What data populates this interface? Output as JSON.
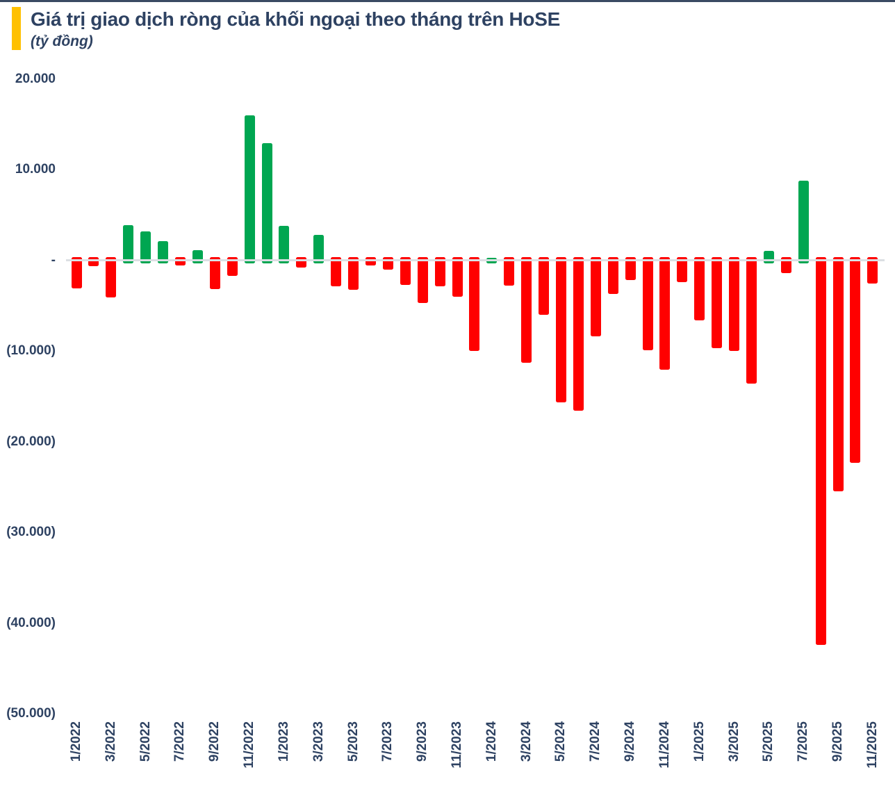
{
  "header": {
    "title": "Giá trị giao dịch ròng của khối ngoại theo tháng trên HoSE",
    "subtitle": "(tỷ đồng)"
  },
  "colors": {
    "accent": "#FFC000",
    "positive": "#00A651",
    "negative": "#FF0000",
    "text": "#2E4262",
    "zero_line": "#DCDFE3",
    "top_edge": "#3A4A63"
  },
  "chart_data": {
    "type": "bar",
    "title": "Giá trị giao dịch ròng của khối ngoại theo tháng trên HoSE",
    "unit": "tỷ đồng",
    "xlabel": "",
    "ylabel": "tỷ đồng",
    "ylim": [
      -50000,
      20000
    ],
    "grid": false,
    "legend": false,
    "categories": [
      "1/2022",
      "2/2022",
      "3/2022",
      "4/2022",
      "5/2022",
      "6/2022",
      "7/2022",
      "8/2022",
      "9/2022",
      "10/2022",
      "11/2022",
      "12/2022",
      "1/2023",
      "2/2023",
      "3/2023",
      "4/2023",
      "5/2023",
      "6/2023",
      "7/2023",
      "8/2023",
      "9/2023",
      "10/2023",
      "11/2023",
      "12/2023",
      "1/2024",
      "2/2024",
      "3/2024",
      "4/2024",
      "5/2024",
      "6/2024",
      "7/2024",
      "8/2024",
      "9/2024",
      "10/2024",
      "11/2024",
      "12/2024",
      "1/2025",
      "2/2025",
      "3/2025",
      "4/2025",
      "5/2025",
      "6/2025",
      "7/2025",
      "8/2025",
      "9/2025",
      "10/2025",
      "11/2025"
    ],
    "values": [
      -3100,
      -650,
      -4100,
      3900,
      3200,
      2100,
      -600,
      1100,
      -3200,
      -1700,
      16000,
      12900,
      3800,
      -800,
      2800,
      -2900,
      -3250,
      -550,
      -1000,
      -2750,
      -4700,
      -2900,
      -4000,
      -10000,
      300,
      -2800,
      -11300,
      -6000,
      -15700,
      -16600,
      -8400,
      -3700,
      -2200,
      -9900,
      -12100,
      -2400,
      -6600,
      -9700,
      -10000,
      -13600,
      1000,
      -1450,
      8800,
      -42400,
      -25500,
      -22300,
      -2600
    ],
    "x_tick_labels_shown": [
      "1/2022",
      "3/2022",
      "5/2022",
      "7/2022",
      "9/2022",
      "11/2022",
      "1/2023",
      "3/2023",
      "5/2023",
      "7/2023",
      "9/2023",
      "11/2023",
      "1/2024",
      "3/2024",
      "5/2024",
      "7/2024",
      "9/2024",
      "11/2024",
      "1/2025",
      "3/2025",
      "5/2025",
      "7/2025",
      "9/2025",
      "11/2025"
    ],
    "y_ticks": [
      {
        "value": 20000,
        "label": "20.000"
      },
      {
        "value": 10000,
        "label": "10.000"
      },
      {
        "value": 0,
        "label": "-"
      },
      {
        "value": -10000,
        "label": "(10.000)"
      },
      {
        "value": -20000,
        "label": "(20.000)"
      },
      {
        "value": -30000,
        "label": "(30.000)"
      },
      {
        "value": -40000,
        "label": "(40.000)"
      },
      {
        "value": -50000,
        "label": "(50.000)"
      }
    ]
  }
}
